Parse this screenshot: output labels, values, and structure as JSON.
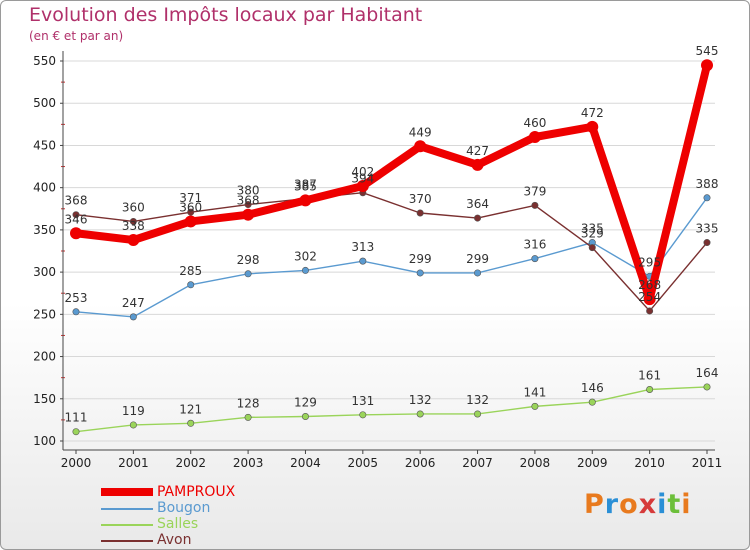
{
  "chart_data": {
    "type": "line",
    "title": "Evolution des Impôts locaux par Habitant",
    "subtitle": "(en € et par an)",
    "categories": [
      "2000",
      "2001",
      "2002",
      "2003",
      "2004",
      "2005",
      "2006",
      "2007",
      "2008",
      "2009",
      "2010",
      "2011"
    ],
    "ylim": [
      100,
      550
    ],
    "yticks": [
      100,
      150,
      200,
      250,
      300,
      350,
      400,
      450,
      500,
      550
    ],
    "grid": "horizontal",
    "series": [
      {
        "name": "Salles",
        "color": "#9ad45a",
        "values": [
          111,
          119,
          121,
          128,
          129,
          131,
          132,
          132,
          141,
          146,
          161,
          164
        ]
      },
      {
        "name": "Bougon",
        "color": "#5a9ad0",
        "values": [
          253,
          247,
          285,
          298,
          302,
          313,
          299,
          299,
          316,
          335,
          295,
          388
        ]
      },
      {
        "name": "Avon",
        "color": "#7a3030",
        "values": [
          368,
          360,
          371,
          380,
          387,
          394,
          370,
          364,
          379,
          329,
          254,
          335
        ]
      },
      {
        "name": "PAMPROUX",
        "color": "#ee0000",
        "values": [
          346,
          338,
          360,
          368,
          385,
          402,
          449,
          427,
          460,
          472,
          268,
          545
        ]
      }
    ],
    "legend": [
      {
        "name": "PAMPROUX",
        "color": "#ee0000",
        "thick": true
      },
      {
        "name": "Bougon",
        "color": "#5a9ad0",
        "thick": false
      },
      {
        "name": "Salles",
        "color": "#9ad45a",
        "thick": false
      },
      {
        "name": "Avon",
        "color": "#7a3030",
        "thick": false
      }
    ]
  },
  "logo": {
    "letters": [
      "P",
      "r",
      "o",
      "x",
      "i",
      "t",
      "i"
    ],
    "colors": [
      "#e87a1e",
      "#2a8fd6",
      "#e87a1e",
      "#d63a3a",
      "#2a8fd6",
      "#6cbf3a",
      "#e87a1e"
    ]
  }
}
